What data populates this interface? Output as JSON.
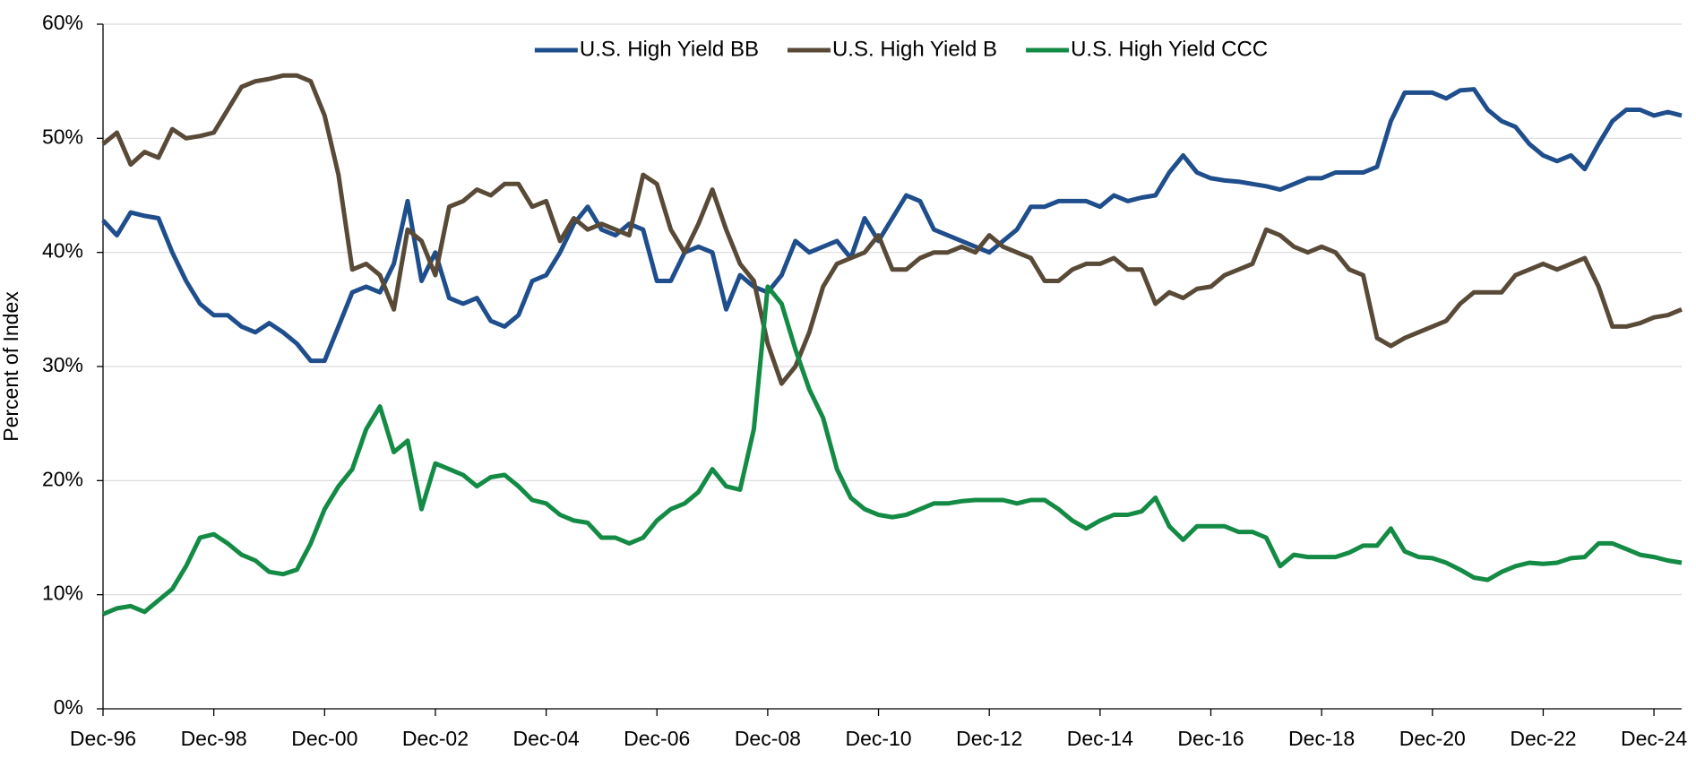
{
  "chart_data": {
    "type": "line",
    "y_label": "Percent of Index",
    "categories": [
      "Dec-96",
      null,
      null,
      null,
      null,
      null,
      null,
      null,
      "Dec-98",
      null,
      null,
      null,
      null,
      null,
      null,
      null,
      "Dec-00",
      null,
      null,
      null,
      null,
      null,
      null,
      null,
      "Dec-02",
      null,
      null,
      null,
      null,
      null,
      null,
      null,
      "Dec-04",
      null,
      null,
      null,
      null,
      null,
      null,
      null,
      "Dec-06",
      null,
      null,
      null,
      null,
      null,
      null,
      null,
      "Dec-08",
      null,
      null,
      null,
      null,
      null,
      null,
      null,
      "Dec-10",
      null,
      null,
      null,
      null,
      null,
      null,
      null,
      "Dec-12",
      null,
      null,
      null,
      null,
      null,
      null,
      null,
      "Dec-14",
      null,
      null,
      null,
      null,
      null,
      null,
      null,
      "Dec-16",
      null,
      null,
      null,
      null,
      null,
      null,
      null,
      "Dec-18",
      null,
      null,
      null,
      null,
      null,
      null,
      null,
      "Dec-20",
      null,
      null,
      null,
      null,
      null,
      null,
      null,
      "Dec-22",
      null,
      null,
      null,
      null,
      null,
      null,
      null,
      "Dec-24",
      null,
      null
    ],
    "series": [
      {
        "name": "U.S. High Yield BB",
        "color": "#1f4e8c",
        "values": [
          42.8,
          41.5,
          43.5,
          43.2,
          43,
          40,
          37.5,
          35.5,
          34.5,
          34.5,
          33.5,
          33,
          33.8,
          33,
          32,
          30.5,
          30.5,
          33.5,
          36.5,
          37,
          36.5,
          39,
          44.5,
          37.5,
          40,
          36,
          35.5,
          36,
          34,
          33.5,
          34.5,
          37.5,
          38,
          40,
          42.5,
          44,
          42,
          41.5,
          42.5,
          42,
          37.5,
          37.5,
          40,
          40.5,
          40,
          35,
          38,
          37,
          36.5,
          38,
          41,
          40,
          40.5,
          41,
          39.5,
          43,
          41,
          43,
          45,
          44.5,
          42,
          41.5,
          41,
          40.5,
          40,
          41,
          42,
          44,
          44,
          44.5,
          44.5,
          44.5,
          44,
          45,
          44.5,
          44.8,
          45,
          47,
          48.5,
          47,
          46.5,
          46.3,
          46.2,
          46,
          45.8,
          45.5,
          46,
          46.5,
          46.5,
          47,
          47,
          47,
          47.5,
          51.5,
          54,
          54,
          54,
          53.5,
          54.2,
          54.3,
          52.5,
          51.5,
          51,
          49.5,
          48.5,
          48,
          48.5,
          47.3,
          49.5,
          51.5,
          52.5,
          52.5,
          52,
          52.3,
          52
        ]
      },
      {
        "name": "U.S. High Yield B",
        "color": "#584a37",
        "values": [
          49.5,
          50.5,
          47.7,
          48.8,
          48.3,
          50.8,
          50,
          50.2,
          50.5,
          52.5,
          54.5,
          55,
          55.2,
          55.5,
          55.5,
          55,
          52,
          46.8,
          38.5,
          39,
          38,
          35,
          42,
          41,
          38,
          44,
          44.5,
          45.5,
          45,
          46,
          46,
          44,
          44.5,
          41,
          43,
          42,
          42.5,
          42,
          41.5,
          46.8,
          46,
          42,
          40,
          42.5,
          45.5,
          42,
          39,
          37.5,
          32,
          28.5,
          30,
          33,
          37,
          39,
          39.5,
          40,
          41.5,
          38.5,
          38.5,
          39.5,
          40,
          40,
          40.5,
          40,
          41.5,
          40.5,
          40,
          39.5,
          37.5,
          37.5,
          38.5,
          39,
          39,
          39.5,
          38.5,
          38.5,
          35.5,
          36.5,
          36,
          36.8,
          37,
          38,
          38.5,
          39,
          42,
          41.5,
          40.5,
          40,
          40.5,
          40,
          38.5,
          38,
          32.5,
          31.8,
          32.5,
          33,
          33.5,
          34,
          35.5,
          36.5,
          36.5,
          36.5,
          38,
          38.5,
          39,
          38.5,
          39,
          39.5,
          37,
          33.5,
          33.5,
          33.8,
          34.3,
          34.5,
          35
        ]
      },
      {
        "name": "U.S. High Yield CCC",
        "color": "#138b45",
        "values": [
          8.3,
          8.8,
          9,
          8.5,
          9.5,
          10.5,
          12.5,
          15,
          15.3,
          14.5,
          13.5,
          13,
          12,
          11.8,
          12.2,
          14.5,
          17.5,
          19.5,
          21,
          24.5,
          26.5,
          22.5,
          23.5,
          17.5,
          21.5,
          21,
          20.5,
          19.5,
          20.3,
          20.5,
          19.5,
          18.3,
          18,
          17,
          16.5,
          16.3,
          15,
          15,
          14.5,
          15,
          16.5,
          17.5,
          18,
          19,
          21,
          19.5,
          19.2,
          24.5,
          37,
          35.5,
          31.5,
          28,
          25.5,
          21,
          18.5,
          17.5,
          17,
          16.8,
          17,
          17.5,
          18,
          18,
          18.2,
          18.3,
          18.3,
          18.3,
          18,
          18.3,
          18.3,
          17.5,
          16.5,
          15.8,
          16.5,
          17,
          17,
          17.3,
          18.5,
          16,
          14.8,
          16,
          16,
          16,
          15.5,
          15.5,
          15,
          12.5,
          13.5,
          13.3,
          13.3,
          13.3,
          13.7,
          14.3,
          14.3,
          15.8,
          13.8,
          13.3,
          13.2,
          12.8,
          12.2,
          11.5,
          11.3,
          12,
          12.5,
          12.8,
          12.7,
          12.8,
          13.2,
          13.3,
          14.5,
          14.5,
          14,
          13.5,
          13.3,
          13,
          12.8
        ]
      }
    ],
    "ylim": [
      0,
      60
    ],
    "yticks": [
      {
        "value": 0,
        "label": "0%"
      },
      {
        "value": 10,
        "label": "10%"
      },
      {
        "value": 20,
        "label": "20%"
      },
      {
        "value": 30,
        "label": "30%"
      },
      {
        "value": 40,
        "label": "40%"
      },
      {
        "value": 50,
        "label": "50%"
      },
      {
        "value": 60,
        "label": "60%"
      }
    ],
    "grid": true,
    "legend": "top"
  }
}
